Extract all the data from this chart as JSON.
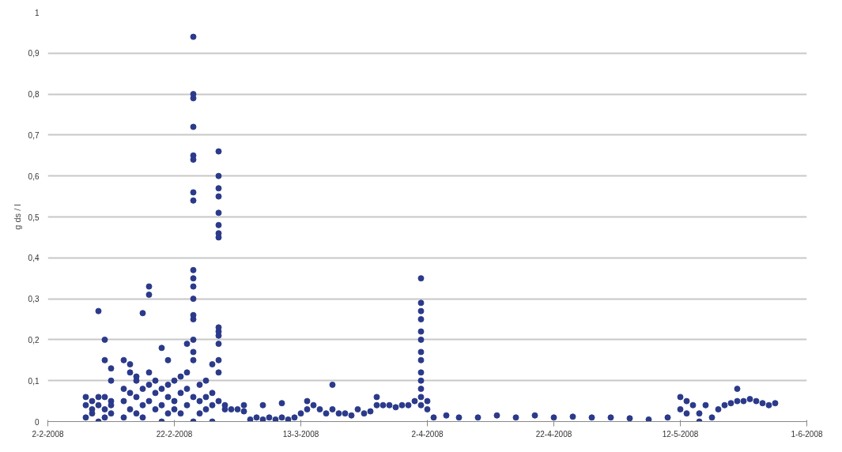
{
  "chart_data": {
    "type": "scatter",
    "ylabel": "g ds / l",
    "marker": "circle",
    "grid": "y",
    "color": "#2b3a8a",
    "xlim": [
      "2008-02-02",
      "2008-06-01"
    ],
    "xticks": [
      {
        "value": "2008-02-02",
        "label": "2-2-2008"
      },
      {
        "value": "2008-02-22",
        "label": "22-2-2008"
      },
      {
        "value": "2008-03-13",
        "label": "13-3-2008"
      },
      {
        "value": "2008-04-02",
        "label": "2-4-2008"
      },
      {
        "value": "2008-04-22",
        "label": "22-4-2008"
      },
      {
        "value": "2008-05-12",
        "label": "12-5-2008"
      },
      {
        "value": "2008-06-01",
        "label": "1-6-2008"
      }
    ],
    "ylim": [
      0,
      1
    ],
    "yticks": [
      0,
      {
        "value": 0.1,
        "label": "0,1"
      },
      {
        "value": 0.2,
        "label": "0,2"
      },
      {
        "value": 0.3,
        "label": "0,3"
      },
      {
        "value": 0.4,
        "label": "0,4"
      },
      {
        "value": 0.5,
        "label": "0,5"
      },
      {
        "value": 0.6,
        "label": "0,6"
      },
      {
        "value": 0.7,
        "label": "0,7"
      },
      {
        "value": 0.8,
        "label": "0,8"
      },
      {
        "value": 0.9,
        "label": "0,9"
      },
      1
    ],
    "x": [
      "2008-02-08",
      "2008-02-08",
      "2008-02-08",
      "2008-02-09",
      "2008-02-09",
      "2008-02-09",
      "2008-02-10",
      "2008-02-10",
      "2008-02-10",
      "2008-02-10",
      "2008-02-11",
      "2008-02-11",
      "2008-02-11",
      "2008-02-11",
      "2008-02-11",
      "2008-02-12",
      "2008-02-12",
      "2008-02-12",
      "2008-02-12",
      "2008-02-12",
      "2008-02-14",
      "2008-02-14",
      "2008-02-14",
      "2008-02-14",
      "2008-02-15",
      "2008-02-15",
      "2008-02-15",
      "2008-02-15",
      "2008-02-16",
      "2008-02-16",
      "2008-02-16",
      "2008-02-16",
      "2008-02-17",
      "2008-02-17",
      "2008-02-17",
      "2008-02-17",
      "2008-02-18",
      "2008-02-18",
      "2008-02-18",
      "2008-02-18",
      "2008-02-18",
      "2008-02-19",
      "2008-02-19",
      "2008-02-19",
      "2008-02-20",
      "2008-02-20",
      "2008-02-20",
      "2008-02-20",
      "2008-02-21",
      "2008-02-21",
      "2008-02-21",
      "2008-02-21",
      "2008-02-22",
      "2008-02-22",
      "2008-02-22",
      "2008-02-23",
      "2008-02-23",
      "2008-02-23",
      "2008-02-24",
      "2008-02-24",
      "2008-02-24",
      "2008-02-24",
      "2008-02-25",
      "2008-02-25",
      "2008-02-25",
      "2008-02-25",
      "2008-02-25",
      "2008-02-25",
      "2008-02-25",
      "2008-02-25",
      "2008-02-25",
      "2008-02-25",
      "2008-02-25",
      "2008-02-25",
      "2008-02-25",
      "2008-02-25",
      "2008-02-25",
      "2008-02-25",
      "2008-02-25",
      "2008-02-25",
      "2008-02-25",
      "2008-02-26",
      "2008-02-26",
      "2008-02-26",
      "2008-02-27",
      "2008-02-27",
      "2008-02-27",
      "2008-02-28",
      "2008-02-28",
      "2008-02-28",
      "2008-02-28",
      "2008-02-29",
      "2008-02-29",
      "2008-02-29",
      "2008-02-29",
      "2008-02-29",
      "2008-02-29",
      "2008-02-29",
      "2008-02-29",
      "2008-02-29",
      "2008-02-29",
      "2008-02-29",
      "2008-02-29",
      "2008-02-29",
      "2008-02-29",
      "2008-02-29",
      "2008-03-01",
      "2008-03-01",
      "2008-03-02",
      "2008-03-03",
      "2008-03-04",
      "2008-03-04",
      "2008-03-05",
      "2008-03-06",
      "2008-03-07",
      "2008-03-07",
      "2008-03-08",
      "2008-03-09",
      "2008-03-10",
      "2008-03-10",
      "2008-03-11",
      "2008-03-12",
      "2008-03-13",
      "2008-03-14",
      "2008-03-14",
      "2008-03-15",
      "2008-03-16",
      "2008-03-17",
      "2008-03-18",
      "2008-03-18",
      "2008-03-19",
      "2008-03-20",
      "2008-03-21",
      "2008-03-22",
      "2008-03-23",
      "2008-03-24",
      "2008-03-25",
      "2008-03-25",
      "2008-03-26",
      "2008-03-27",
      "2008-03-28",
      "2008-03-29",
      "2008-03-30",
      "2008-03-31",
      "2008-04-01",
      "2008-04-01",
      "2008-04-01",
      "2008-04-01",
      "2008-04-01",
      "2008-04-01",
      "2008-04-01",
      "2008-04-01",
      "2008-04-01",
      "2008-04-01",
      "2008-04-01",
      "2008-04-01",
      "2008-04-01",
      "2008-04-02",
      "2008-04-02",
      "2008-04-03",
      "2008-04-05",
      "2008-04-07",
      "2008-04-10",
      "2008-04-13",
      "2008-04-16",
      "2008-04-19",
      "2008-04-22",
      "2008-04-25",
      "2008-04-28",
      "2008-05-01",
      "2008-05-04",
      "2008-05-07",
      "2008-05-10",
      "2008-05-12",
      "2008-05-12",
      "2008-05-13",
      "2008-05-13",
      "2008-05-14",
      "2008-05-15",
      "2008-05-15",
      "2008-05-16",
      "2008-05-17",
      "2008-05-18",
      "2008-05-19",
      "2008-05-20",
      "2008-05-21",
      "2008-05-21",
      "2008-05-22",
      "2008-05-23",
      "2008-05-24",
      "2008-05-25",
      "2008-05-26",
      "2008-05-27"
    ],
    "values": [
      0.01,
      0.04,
      0.06,
      0.02,
      0.05,
      0.03,
      0.0,
      0.06,
      0.27,
      0.04,
      0.2,
      0.15,
      0.03,
      0.01,
      0.06,
      0.13,
      0.1,
      0.05,
      0.02,
      0.04,
      0.01,
      0.05,
      0.08,
      0.15,
      0.03,
      0.07,
      0.12,
      0.14,
      0.02,
      0.06,
      0.1,
      0.11,
      0.265,
      0.04,
      0.08,
      0.01,
      0.33,
      0.31,
      0.05,
      0.09,
      0.12,
      0.03,
      0.07,
      0.1,
      0.18,
      0.04,
      0.08,
      0.0,
      0.15,
      0.06,
      0.02,
      0.09,
      0.05,
      0.1,
      0.03,
      0.07,
      0.02,
      0.11,
      0.19,
      0.04,
      0.08,
      0.12,
      0.94,
      0.8,
      0.79,
      0.72,
      0.65,
      0.64,
      0.56,
      0.54,
      0.37,
      0.35,
      0.33,
      0.3,
      0.26,
      0.25,
      0.2,
      0.17,
      0.15,
      0.06,
      0.0,
      0.05,
      0.09,
      0.02,
      0.1,
      0.06,
      0.03,
      0.14,
      0.04,
      0.07,
      0.0,
      0.66,
      0.6,
      0.57,
      0.55,
      0.51,
      0.48,
      0.46,
      0.45,
      0.23,
      0.22,
      0.21,
      0.19,
      0.15,
      0.12,
      0.05,
      0.03,
      0.04,
      0.03,
      0.03,
      0.025,
      0.04,
      0.005,
      0.01,
      0.005,
      0.04,
      0.01,
      0.005,
      0.01,
      0.045,
      0.005,
      0.01,
      0.02,
      0.05,
      0.03,
      0.04,
      0.03,
      0.02,
      0.09,
      0.03,
      0.02,
      0.02,
      0.015,
      0.03,
      0.02,
      0.025,
      0.06,
      0.04,
      0.04,
      0.04,
      0.035,
      0.04,
      0.04,
      0.05,
      0.35,
      0.29,
      0.27,
      0.25,
      0.22,
      0.2,
      0.17,
      0.15,
      0.12,
      0.1,
      0.08,
      0.06,
      0.04,
      0.05,
      0.03,
      0.01,
      0.015,
      0.01,
      0.01,
      0.015,
      0.01,
      0.015,
      0.01,
      0.012,
      0.01,
      0.01,
      0.008,
      0.005,
      0.01,
      0.06,
      0.03,
      0.05,
      0.02,
      0.04,
      0.02,
      0.0,
      0.04,
      0.01,
      0.03,
      0.04,
      0.045,
      0.08,
      0.05,
      0.05,
      0.055,
      0.05,
      0.045,
      0.04,
      0.045
    ]
  }
}
